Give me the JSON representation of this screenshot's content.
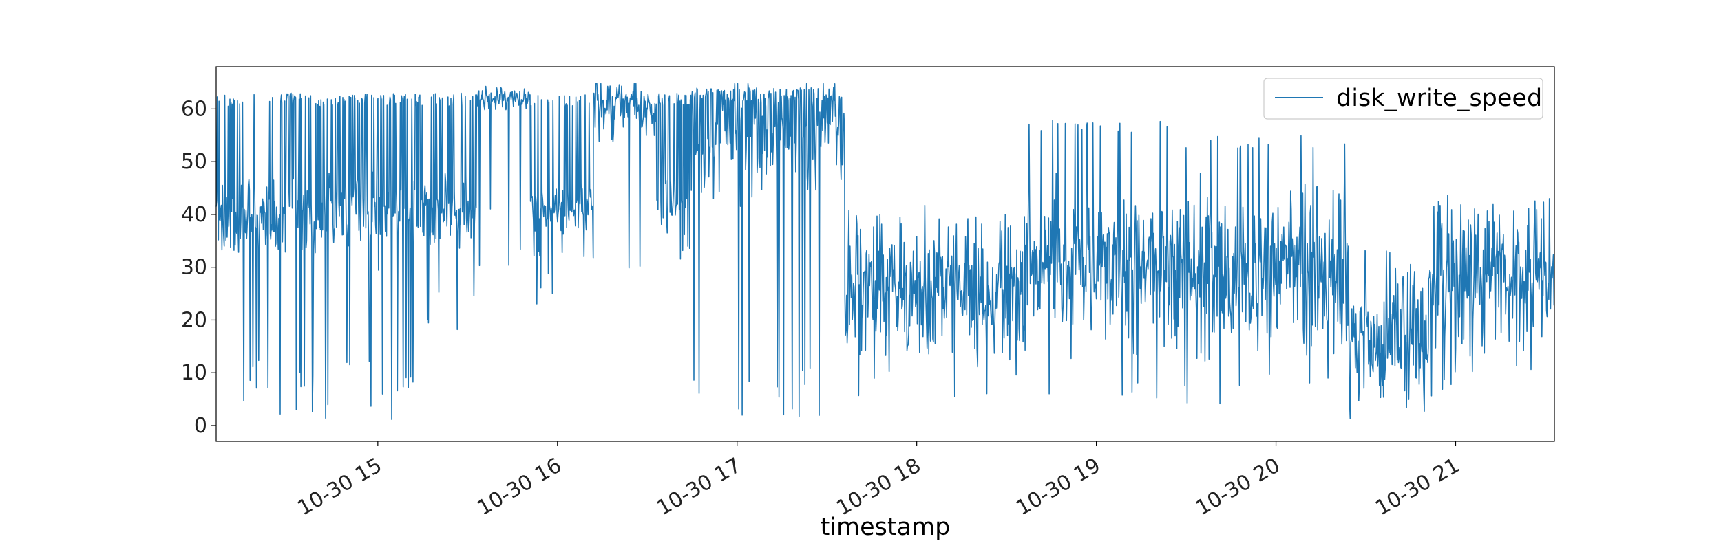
{
  "chart_data": {
    "type": "line",
    "title": "",
    "xlabel": "timestamp",
    "ylabel": "",
    "x_tick_labels": [
      "10-30 15",
      "10-30 16",
      "10-30 17",
      "10-30 18",
      "10-30 19",
      "10-30 20",
      "10-30 21"
    ],
    "x_ticks_hours": [
      15,
      16,
      17,
      18,
      19,
      20,
      21
    ],
    "y_ticks": [
      0,
      10,
      20,
      30,
      40,
      50,
      60
    ],
    "xlim_hours": [
      14.1,
      21.55
    ],
    "ylim": [
      -3,
      68
    ],
    "legend": "top-right",
    "grid": false,
    "series": [
      {
        "name": "disk_write_speed",
        "color": "#1f77b4",
        "segments": [
          {
            "start": 14.1,
            "end": 14.45,
            "base": 39,
            "spread": 5,
            "high": 63,
            "low": 2,
            "pHigh": 0.1,
            "pLow": 0.06
          },
          {
            "start": 14.45,
            "end": 15.25,
            "base": 40,
            "spread": 5,
            "high": 63,
            "low": 1,
            "pHigh": 0.3,
            "pLow": 0.08
          },
          {
            "start": 15.25,
            "end": 15.55,
            "base": 40,
            "spread": 5,
            "high": 63,
            "low": 15,
            "pHigh": 0.22,
            "pLow": 0.05
          },
          {
            "start": 15.55,
            "end": 15.85,
            "base": 62,
            "spread": 1.5,
            "high": 63,
            "low": 30,
            "pHigh": 0.0,
            "pLow": 0.08
          },
          {
            "start": 15.85,
            "end": 16.2,
            "base": 41,
            "spread": 3,
            "high": 63,
            "low": 22,
            "pHigh": 0.18,
            "pLow": 0.05
          },
          {
            "start": 16.2,
            "end": 16.55,
            "base": 60,
            "spread": 4,
            "high": 63,
            "low": 19,
            "pHigh": 0.2,
            "pLow": 0.06
          },
          {
            "start": 16.55,
            "end": 16.75,
            "base": 42,
            "spread": 4,
            "high": 63,
            "low": 25,
            "pHigh": 0.45,
            "pLow": 0.05
          },
          {
            "start": 16.75,
            "end": 17.6,
            "base": 55,
            "spread": 8,
            "high": 64,
            "low": 1,
            "pHigh": 0.3,
            "pLow": 0.08
          },
          {
            "start": 17.6,
            "end": 18.6,
            "base": 26,
            "spread": 8,
            "high": 40,
            "low": 5,
            "pHigh": 0.05,
            "pLow": 0.05
          },
          {
            "start": 18.6,
            "end": 19.4,
            "base": 31,
            "spread": 9,
            "high": 58,
            "low": 5,
            "pHigh": 0.05,
            "pLow": 0.04
          },
          {
            "start": 19.4,
            "end": 20.4,
            "base": 30,
            "spread": 10,
            "high": 55,
            "low": 3,
            "pHigh": 0.05,
            "pLow": 0.04
          },
          {
            "start": 20.4,
            "end": 20.85,
            "base": 18,
            "spread": 8,
            "high": 35,
            "low": 1,
            "pHigh": 0.03,
            "pLow": 0.05
          },
          {
            "start": 20.85,
            "end": 21.55,
            "base": 28,
            "spread": 8,
            "high": 43,
            "low": 5,
            "pHigh": 0.05,
            "pLow": 0.04
          }
        ]
      }
    ]
  }
}
